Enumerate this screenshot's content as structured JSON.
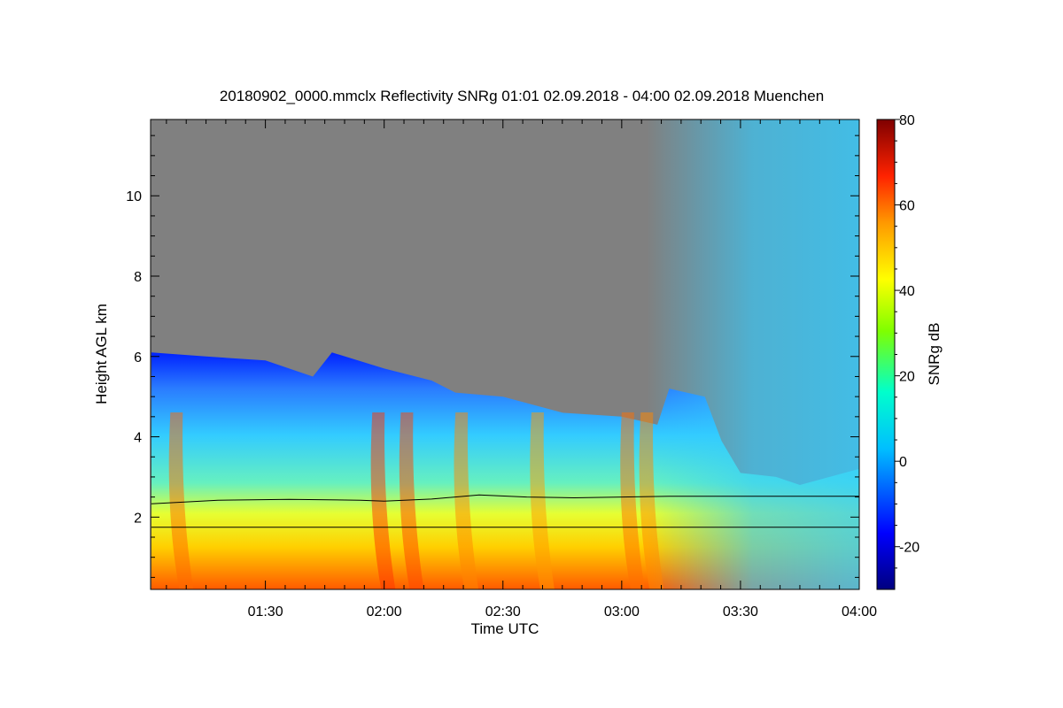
{
  "chart_data": {
    "type": "heatmap",
    "title": "20180902_0000.mmclx Reflectivity SNRg   01:01 02.09.2018 - 04:00 02.09.2018 Muenchen",
    "xlabel": "Time UTC",
    "ylabel": "Height AGL km",
    "colorbar_label": "SNRg dB",
    "x_range_hours": [
      1.0167,
      4.0
    ],
    "y_range_km": [
      0.2,
      11.9
    ],
    "x_ticks": [
      {
        "hours": 1.5,
        "label": "01:30"
      },
      {
        "hours": 2.0,
        "label": "02:00"
      },
      {
        "hours": 2.5,
        "label": "02:30"
      },
      {
        "hours": 3.0,
        "label": "03:00"
      },
      {
        "hours": 3.5,
        "label": "03:30"
      },
      {
        "hours": 4.0,
        "label": "04:00"
      }
    ],
    "y_ticks": [
      2,
      4,
      6,
      8,
      10
    ],
    "colorbar_range": [
      -30,
      80
    ],
    "colorbar_ticks": [
      -20,
      0,
      20,
      40,
      60,
      80
    ],
    "background_color": "#808080",
    "cloud_top_km": [
      [
        1.02,
        6.1
      ],
      [
        1.25,
        6.0
      ],
      [
        1.5,
        5.9
      ],
      [
        1.7,
        5.5
      ],
      [
        1.78,
        6.1
      ],
      [
        2.0,
        5.7
      ],
      [
        2.2,
        5.4
      ],
      [
        2.3,
        5.1
      ],
      [
        2.5,
        5.0
      ],
      [
        2.75,
        4.6
      ],
      [
        3.0,
        4.5
      ],
      [
        3.15,
        4.3
      ],
      [
        3.2,
        5.2
      ],
      [
        3.35,
        5.0
      ],
      [
        3.42,
        3.9
      ],
      [
        3.5,
        3.1
      ],
      [
        3.65,
        3.0
      ],
      [
        3.75,
        2.8
      ],
      [
        4.0,
        3.2
      ]
    ],
    "line_series": [
      {
        "x_hours": [
          1.02,
          1.3,
          1.6,
          1.9,
          2.0,
          2.2,
          2.4,
          2.6,
          2.8,
          3.0,
          3.2,
          3.4,
          3.6,
          4.0
        ],
        "y_km": [
          2.33,
          2.42,
          2.44,
          2.42,
          2.4,
          2.45,
          2.55,
          2.5,
          2.48,
          2.5,
          2.52,
          2.52,
          2.52,
          2.52
        ]
      },
      {
        "x_hours": [
          1.02,
          4.0
        ],
        "y_km": [
          1.75,
          1.75
        ]
      }
    ]
  }
}
